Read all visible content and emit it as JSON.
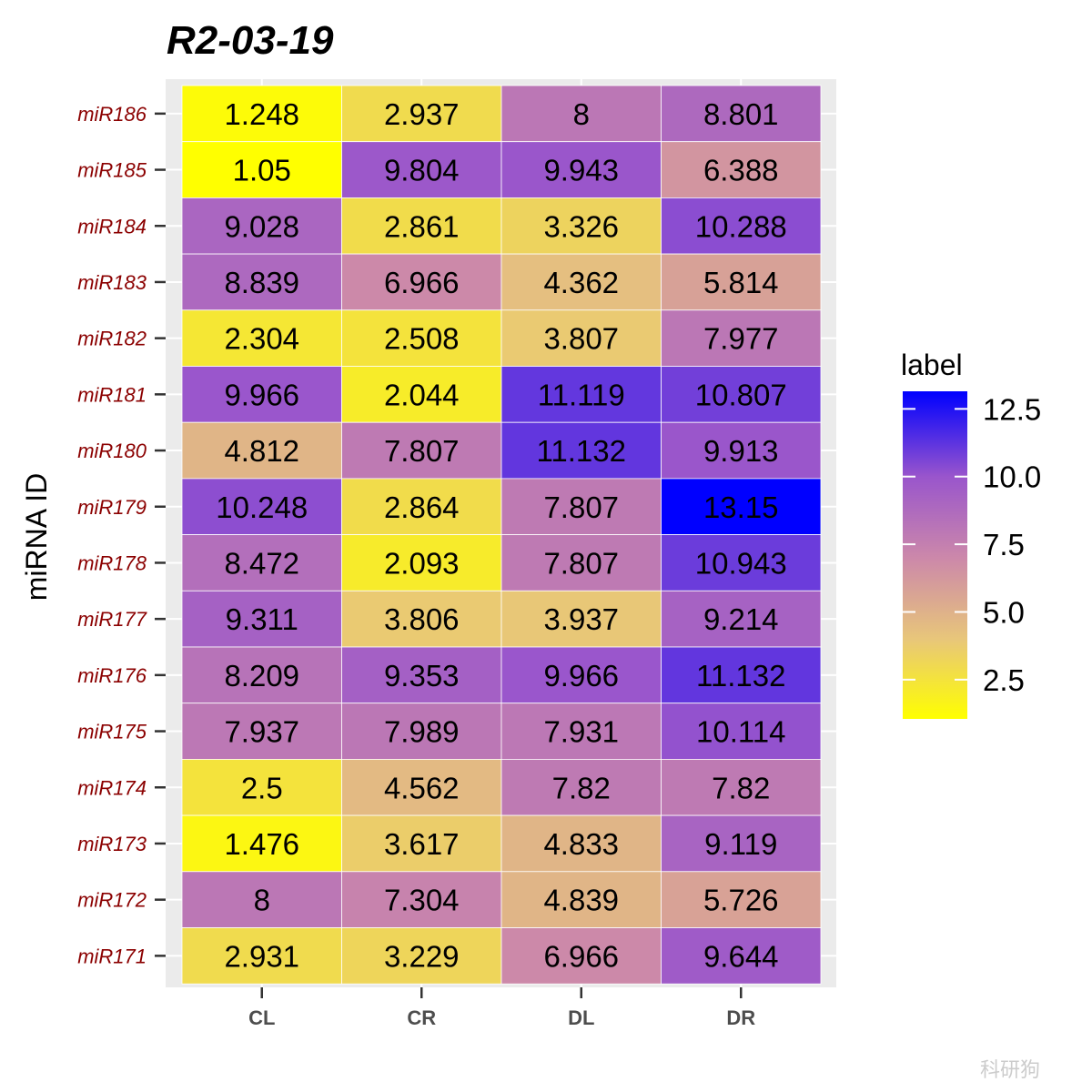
{
  "chart_data": {
    "type": "heatmap",
    "title": "R2-03-19",
    "ylabel": "miRNA ID",
    "xlabel": "",
    "x": [
      "CL",
      "CR",
      "DL",
      "DR"
    ],
    "y": [
      "miR186",
      "miR185",
      "miR184",
      "miR183",
      "miR182",
      "miR181",
      "miR180",
      "miR179",
      "miR178",
      "miR177",
      "miR176",
      "miR175",
      "miR174",
      "miR173",
      "miR172",
      "miR171"
    ],
    "cell_labels": [
      [
        "1.248",
        "2.937",
        "8",
        "8.801"
      ],
      [
        "1.05",
        "9.804",
        "9.943",
        "6.388"
      ],
      [
        "9.028",
        "2.861",
        "3.326",
        "10.288"
      ],
      [
        "8.839",
        "6.966",
        "4.362",
        "5.814"
      ],
      [
        "2.304",
        "2.508",
        "3.807",
        "7.977"
      ],
      [
        "9.966",
        "2.044",
        "11.119",
        "10.807"
      ],
      [
        "4.812",
        "7.807",
        "11.132",
        "9.913"
      ],
      [
        "10.248",
        "2.864",
        "7.807",
        "13.15"
      ],
      [
        "8.472",
        "2.093",
        "7.807",
        "10.943"
      ],
      [
        "9.311",
        "3.806",
        "3.937",
        "9.214"
      ],
      [
        "8.209",
        "9.353",
        "9.966",
        "11.132"
      ],
      [
        "7.937",
        "7.989",
        "7.931",
        "10.114"
      ],
      [
        "2.5",
        "4.562",
        "7.82",
        "7.82"
      ],
      [
        "1.476",
        "3.617",
        "4.833",
        "9.119"
      ],
      [
        "8",
        "7.304",
        "4.839",
        "5.726"
      ],
      [
        "2.931",
        "3.229",
        "6.966",
        "9.644"
      ]
    ],
    "legend": {
      "title": "label",
      "placement": "right",
      "ticks": [
        "2.5",
        "5.0",
        "7.5",
        "10.0",
        "12.5"
      ],
      "tick_values": [
        2.5,
        5.0,
        7.5,
        10.0,
        12.5
      ],
      "min": 1.05,
      "max": 13.15
    },
    "color_scale": {
      "low": "#ffff00",
      "mid": "#cc88aa",
      "high": "#0000ff",
      "stops": [
        {
          "value": 1.05,
          "color": "#ffff00"
        },
        {
          "value": 4.0,
          "color": "#e8c67a"
        },
        {
          "value": 7.0,
          "color": "#cc88aa"
        },
        {
          "value": 10.0,
          "color": "#9955cc"
        },
        {
          "value": 13.15,
          "color": "#0000ff"
        }
      ]
    },
    "panel_background": "#ebebeb",
    "grid": true
  },
  "watermark": "科研狗"
}
